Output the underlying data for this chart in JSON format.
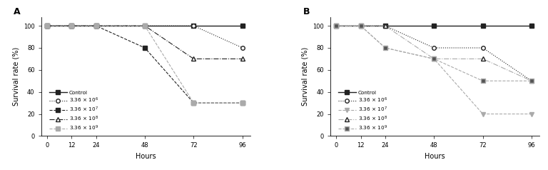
{
  "hours": [
    0,
    12,
    24,
    48,
    72,
    96
  ],
  "panel_A": {
    "title": "A",
    "series": [
      {
        "label": "Control",
        "values": [
          100,
          100,
          100,
          100,
          100,
          100
        ],
        "color": "#222222",
        "linestyle": "-",
        "marker": "s",
        "markerfill": "#222222",
        "markersize": 4,
        "linewidth": 1.0,
        "dashes": []
      },
      {
        "label": "3.36 × 10$^{6}$",
        "values": [
          100,
          100,
          100,
          100,
          100,
          80
        ],
        "color": "#222222",
        "linestyle": ":",
        "marker": "o",
        "markerfill": "white",
        "markersize": 4,
        "linewidth": 0.8,
        "dashes": [
          1,
          2
        ]
      },
      {
        "label": "3.36 × 10$^{7}$",
        "values": [
          100,
          100,
          100,
          80,
          30,
          30
        ],
        "color": "#222222",
        "linestyle": "--",
        "marker": "s",
        "markerfill": "#222222",
        "markersize": 4,
        "linewidth": 0.8,
        "dashes": [
          4,
          2
        ]
      },
      {
        "label": "3.36 × 10$^{8}$",
        "values": [
          100,
          100,
          100,
          100,
          70,
          70
        ],
        "color": "#222222",
        "linestyle": "-.",
        "marker": "^",
        "markerfill": "white",
        "markersize": 4,
        "linewidth": 0.8,
        "dashes": [
          4,
          2,
          1,
          2
        ]
      },
      {
        "label": "3.36 × 10$^{9}$",
        "values": [
          100,
          100,
          100,
          100,
          30,
          30
        ],
        "color": "#aaaaaa",
        "linestyle": "--",
        "marker": "s",
        "markerfill": "#aaaaaa",
        "markersize": 4,
        "linewidth": 0.8,
        "dashes": [
          6,
          2
        ]
      }
    ]
  },
  "panel_B": {
    "title": "B",
    "series": [
      {
        "label": "Control",
        "values": [
          100,
          100,
          100,
          100,
          100,
          100
        ],
        "color": "#222222",
        "linestyle": "-",
        "marker": "s",
        "markerfill": "#222222",
        "markersize": 4,
        "linewidth": 1.0,
        "dashes": []
      },
      {
        "label": "3.36 × 10$^{6}$",
        "values": [
          100,
          100,
          100,
          80,
          80,
          50
        ],
        "color": "#222222",
        "linestyle": ":",
        "marker": "o",
        "markerfill": "white",
        "markersize": 4,
        "linewidth": 0.8,
        "dashes": [
          1,
          2
        ]
      },
      {
        "label": "3.36 × 10$^{7}$",
        "values": [
          100,
          100,
          80,
          70,
          20,
          20
        ],
        "color": "#aaaaaa",
        "linestyle": "--",
        "marker": "v",
        "markerfill": "#aaaaaa",
        "markersize": 4,
        "linewidth": 0.8,
        "dashes": [
          4,
          2
        ]
      },
      {
        "label": "3.36 × 10$^{8}$",
        "values": [
          100,
          100,
          100,
          70,
          70,
          50
        ],
        "color": "#aaaaaa",
        "linestyle": "-.",
        "marker": "^",
        "markerfill": "white",
        "markersize": 4,
        "linewidth": 0.8,
        "dashes": [
          4,
          2,
          1,
          2
        ]
      },
      {
        "label": "3.36 × 10$^{9}$",
        "values": [
          100,
          100,
          80,
          70,
          50,
          50
        ],
        "color": "#aaaaaa",
        "linestyle": "--",
        "marker": "s",
        "markerfill": "#555555",
        "markersize": 4,
        "linewidth": 0.8,
        "dashes": [
          6,
          2
        ]
      }
    ]
  },
  "ylabel": "Survival rate (%)",
  "xlabel": "Hours",
  "ylim": [
    0,
    108
  ],
  "yticks": [
    0,
    20,
    40,
    60,
    80,
    100
  ],
  "xticks": [
    0,
    12,
    24,
    48,
    72,
    96
  ]
}
